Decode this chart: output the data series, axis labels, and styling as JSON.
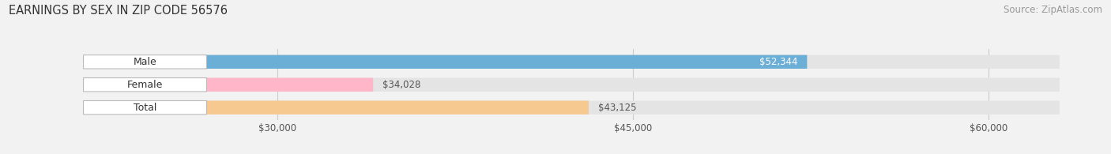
{
  "title": "EARNINGS BY SEX IN ZIP CODE 56576",
  "source": "Source: ZipAtlas.com",
  "categories": [
    "Male",
    "Female",
    "Total"
  ],
  "values": [
    52344,
    34028,
    43125
  ],
  "bar_colors": [
    "#6baed6",
    "#ffb6c8",
    "#f5c990"
  ],
  "bar_labels": [
    "$52,344",
    "$34,028",
    "$43,125"
  ],
  "label_inside": [
    true,
    false,
    false
  ],
  "label_color_inside": "#ffffff",
  "label_color_outside": "#555555",
  "xmin": 27000,
  "xmax": 63000,
  "xticks": [
    30000,
    45000,
    60000
  ],
  "xtick_labels": [
    "$30,000",
    "$45,000",
    "$60,000"
  ],
  "background_color": "#f2f2f2",
  "bar_bg_color": "#e4e4e4",
  "title_fontsize": 10.5,
  "source_fontsize": 8.5,
  "label_fontsize": 8.5,
  "tick_fontsize": 8.5,
  "category_fontsize": 9
}
